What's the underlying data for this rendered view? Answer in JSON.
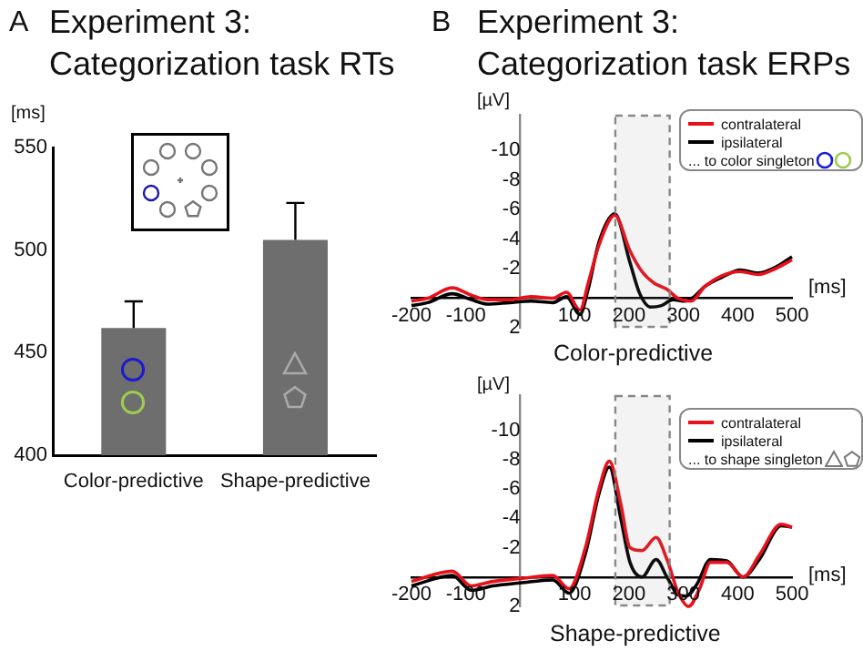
{
  "chart_data": [
    {
      "type": "bar",
      "title": "Experiment 3:",
      "subtitle": "Categorization task RTs",
      "ylabel": "[ms]",
      "annotations": [
        "A"
      ],
      "categories": [
        "Color-predictive",
        "Shape-predictive"
      ],
      "values": [
        462,
        505
      ],
      "color": "#6e6e6e",
      "errors": [
        [
          462,
          475
        ],
        [
          505,
          523
        ]
      ],
      "ylim": [
        400,
        550
      ],
      "yticks": [
        400,
        450,
        500,
        550
      ],
      "grid": false
    },
    {
      "type": "line",
      "title": "Experiment 3:",
      "subtitle": "Categorization task ERPs",
      "ylabel": "[µV]",
      "xlabel": "[ms]",
      "annotations": [
        "B",
        "Color-predictive"
      ],
      "legend": "top right",
      "legend_title": "... to color singleton",
      "series": [
        {
          "name": "contralateral",
          "color": "#e8101a",
          "x": [
            -200,
            -170,
            -125,
            -90,
            -60,
            -20,
            20,
            60,
            85,
            110,
            125,
            145,
            174,
            202,
            224,
            247,
            270,
            290,
            314,
            340,
            370,
            405,
            438,
            470,
            500
          ],
          "values": [
            0.2,
            0,
            -0.7,
            -0.2,
            0.1,
            0.1,
            -0.1,
            0,
            -0.4,
            0.8,
            -1,
            -3.6,
            -5.6,
            -3.2,
            -1.8,
            -1,
            -0.6,
            0,
            0.2,
            -0.8,
            -1.5,
            -1.8,
            -1.6,
            -2,
            -2.6
          ]
        },
        {
          "name": "ipsilateral",
          "color": "#000000",
          "x": [
            -200,
            -170,
            -125,
            -90,
            -60,
            -20,
            20,
            60,
            85,
            110,
            125,
            145,
            174,
            202,
            220,
            240,
            260,
            281,
            303,
            320,
            340,
            370,
            405,
            438,
            470,
            500
          ],
          "values": [
            0.5,
            0.3,
            -0.3,
            0.1,
            0.4,
            0.3,
            0.2,
            0.3,
            -0.1,
            1.1,
            -0.6,
            -3.8,
            -5.7,
            -2.4,
            -0.3,
            0.6,
            0.5,
            0.1,
            0.2,
            -0.1,
            -0.8,
            -1.4,
            -1.9,
            -1.7,
            -2.1,
            -2.8
          ]
        }
      ],
      "xlim": [
        -200,
        500
      ],
      "xticks": [
        -200,
        -100,
        100,
        200,
        300,
        400,
        500
      ],
      "ylim": [
        2,
        -12.4
      ],
      "yticks": [
        -10,
        -8,
        -6,
        -4,
        -2,
        2
      ],
      "grid": false,
      "bands": [
        {
          "axis": "x",
          "from": 175,
          "to": 275,
          "color": "#888888"
        }
      ]
    },
    {
      "type": "line",
      "ylabel": "[µV]",
      "xlabel": "[ms]",
      "annotations": [
        "Shape-predictive"
      ],
      "legend": "top right",
      "legend_title": "... to shape singleton",
      "series": [
        {
          "name": "contralateral",
          "color": "#e8101a",
          "x": [
            -200,
            -125,
            -90,
            -50,
            0,
            60,
            90,
            120,
            145,
            164,
            185,
            202,
            224,
            250,
            270,
            290,
            310,
            330,
            350,
            380,
            410,
            440,
            480,
            500
          ],
          "values": [
            0.3,
            -0.4,
            0.6,
            0.3,
            0.1,
            -0.1,
            0.8,
            -2,
            -6,
            -7.9,
            -5,
            -2,
            -1.8,
            -2.7,
            -1.2,
            1,
            2,
            0.8,
            -1,
            -1,
            0,
            -1.5,
            -3.6,
            -3.4
          ]
        },
        {
          "name": "ipsilateral",
          "color": "#000000",
          "x": [
            -200,
            -125,
            -90,
            -50,
            0,
            60,
            90,
            120,
            145,
            164,
            185,
            202,
            224,
            250,
            270,
            290,
            305,
            325,
            350,
            380,
            410,
            440,
            480,
            500
          ],
          "values": [
            0.6,
            -0.1,
            0.9,
            0.6,
            0.4,
            0.2,
            1.1,
            -1.6,
            -5.7,
            -7.5,
            -4,
            -1,
            0,
            -1.2,
            0,
            1.2,
            1.3,
            0.5,
            -1.2,
            -1.1,
            0,
            -1.2,
            -3.5,
            -3.4
          ]
        }
      ],
      "xlim": [
        -200,
        500
      ],
      "xticks": [
        -200,
        -100,
        100,
        200,
        300,
        400,
        500
      ],
      "ylim": [
        2,
        -12.4
      ],
      "yticks": [
        -10,
        -8,
        -6,
        -4,
        -2,
        2
      ],
      "grid": false,
      "bands": [
        {
          "axis": "x",
          "from": 175,
          "to": 275,
          "color": "#888888"
        }
      ]
    }
  ]
}
